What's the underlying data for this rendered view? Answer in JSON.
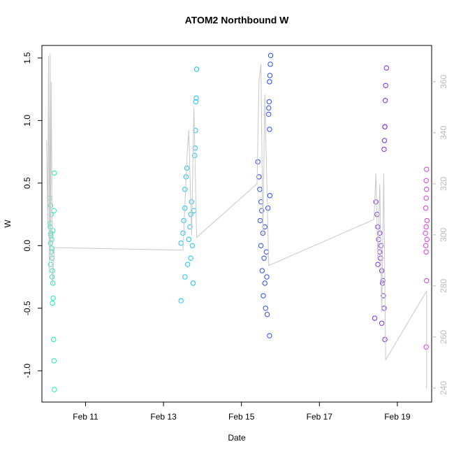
{
  "chart_data": {
    "type": "scatter",
    "title": "ATOM2 Northbound W",
    "x_label": "Date",
    "y_label": "W",
    "xlim": [
      9.88,
      19.88
    ],
    "ylim": [
      -1.25,
      1.6
    ],
    "y2lim": [
      234.5,
      374.2
    ],
    "xticks": [
      {
        "value": 11,
        "label": "Feb 11"
      },
      {
        "value": 13,
        "label": "Feb 13"
      },
      {
        "value": 15,
        "label": "Feb 15"
      },
      {
        "value": 17,
        "label": "Feb 17"
      },
      {
        "value": 19,
        "label": "Feb 19"
      }
    ],
    "yticks": [
      {
        "value": -1,
        "label": "-1.0"
      },
      -0.5,
      {
        "value": 0,
        "label": "0.0"
      },
      0.5,
      {
        "value": 1,
        "label": "1.0"
      },
      1.5
    ],
    "y2ticks": [
      240,
      260,
      280,
      300,
      320,
      340,
      360
    ],
    "series": [
      {
        "color": "#19f0b4",
        "x": [
          10.08,
          10.1,
          10.12,
          10.09,
          10.11,
          10.13,
          10.1,
          10.12,
          10.14,
          10.1,
          10.15,
          10.16,
          10.17,
          10.15,
          10.2,
          10.19,
          10.18,
          10.19,
          10.2,
          10.11,
          10.13,
          10.09,
          10.14,
          10.16
        ],
        "values": [
          0.38,
          0.32,
          0.25,
          0.15,
          0.08,
          0.05,
          0.02,
          -0.05,
          -0.1,
          -0.15,
          -0.2,
          -0.3,
          -0.42,
          -0.46,
          0.58,
          0.28,
          -0.75,
          -0.92,
          -1.15,
          0.1,
          -0.02,
          0.18,
          -0.25,
          0.12
        ]
      },
      {
        "color": "#17c4f0",
        "x": [
          13.45,
          13.45,
          13.5,
          13.52,
          13.55,
          13.55,
          13.58,
          13.6,
          13.55,
          13.62,
          13.65,
          13.68,
          13.7,
          13.72,
          13.85,
          13.84,
          13.83,
          13.82,
          13.81,
          13.8,
          13.76,
          13.7,
          13.74,
          13.78
        ],
        "values": [
          0.02,
          -0.44,
          0.1,
          0.2,
          0.3,
          0.45,
          0.55,
          0.62,
          -0.25,
          -0.15,
          0.05,
          0.15,
          0.25,
          0.35,
          1.41,
          1.18,
          1.15,
          0.92,
          0.78,
          0.72,
          -0.3,
          -0.1,
          0.0,
          0.28
        ]
      },
      {
        "color": "#2a4cf2",
        "x": [
          15.42,
          15.45,
          15.47,
          15.5,
          15.52,
          15.48,
          15.55,
          15.5,
          15.58,
          15.53,
          15.6,
          15.56,
          15.62,
          15.66,
          15.72,
          15.75,
          15.74,
          15.73,
          15.72,
          15.71,
          15.7,
          15.7,
          15.72,
          15.73,
          15.6,
          15.65,
          15.68,
          15.64
        ],
        "values": [
          0.67,
          0.55,
          0.45,
          0.35,
          0.28,
          0.2,
          0.1,
          0.0,
          -0.1,
          -0.2,
          -0.3,
          -0.4,
          -0.5,
          -0.55,
          -0.72,
          1.52,
          1.45,
          1.36,
          1.31,
          1.15,
          1.1,
          1.05,
          0.93,
          0.4,
          0.15,
          -0.25,
          0.3,
          -0.05
        ]
      },
      {
        "color": "#7a2ae6",
        "x": [
          18.45,
          18.48,
          18.5,
          18.52,
          18.55,
          18.57,
          18.6,
          18.62,
          18.64,
          18.66,
          18.42,
          18.6,
          18.68,
          18.72,
          18.7,
          18.69,
          18.68,
          18.68,
          18.67,
          18.66,
          18.55,
          18.5,
          18.58,
          18.63
        ],
        "values": [
          0.35,
          0.25,
          0.15,
          0.05,
          -0.05,
          -0.1,
          -0.2,
          -0.3,
          -0.4,
          -0.5,
          -0.58,
          -0.62,
          -0.75,
          1.42,
          1.28,
          1.16,
          0.95,
          0.95,
          0.84,
          0.77,
          0.1,
          -0.15,
          0.0,
          -0.28
        ]
      },
      {
        "color": "#d83ce0",
        "x": [
          19.75,
          19.74,
          19.75,
          19.74,
          19.73,
          19.76,
          19.74,
          19.72,
          19.76,
          19.73,
          19.74,
          19.75,
          19.74
        ],
        "values": [
          0.61,
          0.52,
          0.45,
          0.38,
          0.3,
          0.2,
          0.15,
          0.1,
          0.05,
          0.0,
          -0.05,
          -0.28,
          -0.81
        ]
      },
      {
        "type": "line",
        "axis": "y2",
        "color": "#c8c8c8",
        "x": [
          10.0,
          10.03,
          10.05,
          10.07,
          10.09,
          10.1,
          10.12,
          10.15,
          10.2,
          13.5,
          13.6,
          13.65,
          13.72,
          13.78,
          13.85,
          15.4,
          15.45,
          15.5,
          15.55,
          15.6,
          15.7,
          18.4,
          18.45,
          18.5,
          18.55,
          18.6,
          18.65,
          18.7,
          19.75,
          19.75
        ],
        "values": [
          337,
          305,
          370,
          285,
          371,
          290,
          360,
          280,
          295,
          294,
          330,
          341,
          300,
          350,
          299,
          320,
          360,
          367,
          300,
          355,
          288,
          306,
          324,
          290,
          320,
          270,
          324,
          251,
          278,
          239.5
        ]
      }
    ]
  }
}
